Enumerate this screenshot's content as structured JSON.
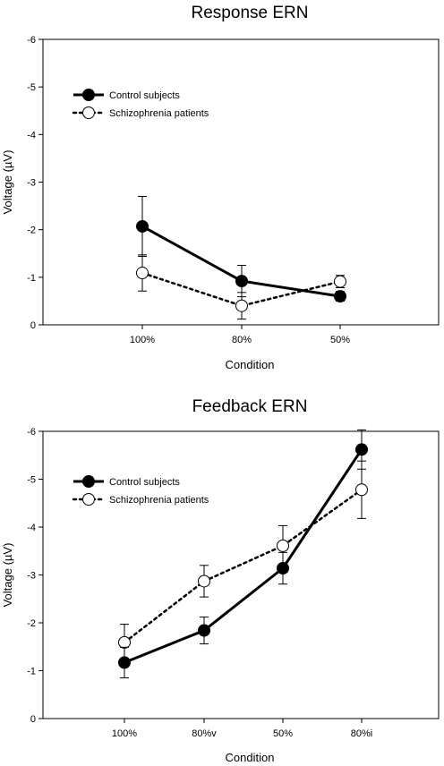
{
  "chart_data": [
    {
      "type": "line",
      "title": "Response ERN",
      "xlabel": "Condition",
      "ylabel": "Voltage (µV)",
      "categories": [
        "100%",
        "80%",
        "50%"
      ],
      "y_axis_inverted": true,
      "ylim": [
        0,
        -6
      ],
      "yticks": [
        "0",
        "-1",
        "-2",
        "-3",
        "-4",
        "-5",
        "-6"
      ],
      "legend_position": "top-left",
      "grid": false,
      "series": [
        {
          "name": "Control subjects",
          "style": "solid",
          "marker": "filled-circle",
          "values": [
            -2.07,
            -0.92,
            -0.6
          ],
          "error": [
            0.63,
            0.33,
            0.1
          ]
        },
        {
          "name": "Schizophrenia patients",
          "style": "dotted",
          "marker": "open-circle",
          "values": [
            -1.09,
            -0.4,
            -0.91
          ],
          "error": [
            0.38,
            0.28,
            0.13
          ]
        }
      ]
    },
    {
      "type": "line",
      "title": "Feedback ERN",
      "xlabel": "Condition",
      "ylabel": "Voltage (µV)",
      "categories": [
        "100%",
        "80%v",
        "50%",
        "80%i"
      ],
      "y_axis_inverted": true,
      "ylim": [
        0,
        -6
      ],
      "yticks": [
        "0",
        "-1",
        "-2",
        "-3",
        "-4",
        "-5",
        "-6"
      ],
      "legend_position": "top-left",
      "grid": false,
      "series": [
        {
          "name": "Control subjects",
          "style": "solid",
          "marker": "filled-circle",
          "values": [
            -1.17,
            -1.84,
            -3.14,
            -5.62
          ],
          "error": [
            0.32,
            0.28,
            0.33,
            0.41
          ]
        },
        {
          "name": "Schizophrenia patients",
          "style": "dotted",
          "marker": "open-circle",
          "values": [
            -1.59,
            -2.87,
            -3.61,
            -4.78
          ],
          "error": [
            0.38,
            0.33,
            0.42,
            0.6
          ]
        }
      ]
    }
  ]
}
